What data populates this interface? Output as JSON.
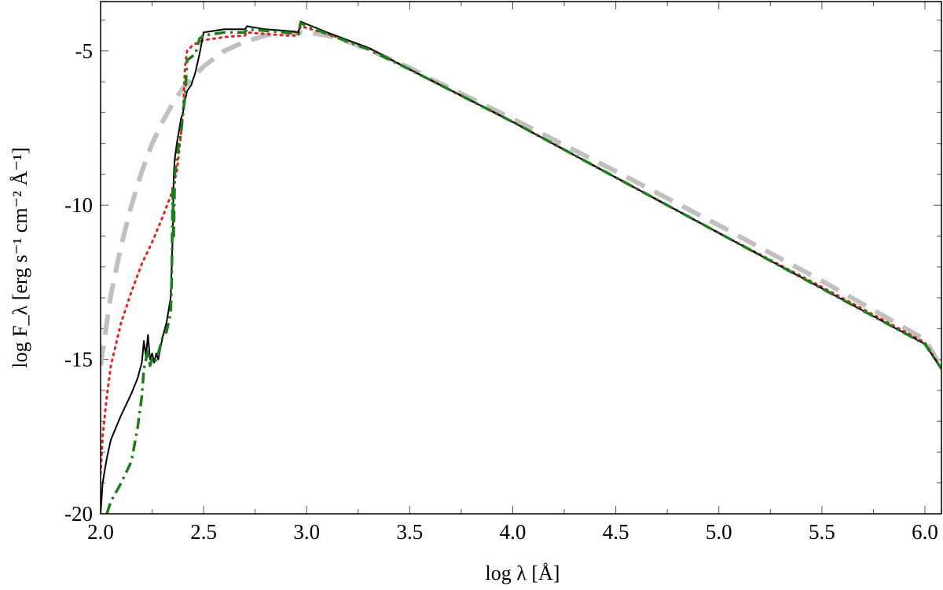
{
  "chart_data": {
    "type": "line",
    "title": "",
    "xlabel": "log λ [Å]",
    "ylabel": "log F_λ [erg s⁻¹ cm⁻² Å⁻¹]",
    "xlim": [
      2.0,
      6.08
    ],
    "ylim": [
      -20,
      -3.4
    ],
    "x_ticks": [
      2.0,
      2.5,
      3.0,
      3.5,
      4.0,
      4.5,
      5.0,
      5.5,
      6.0
    ],
    "x_tick_labels": [
      "2.0",
      "2.5",
      "3.0",
      "3.5",
      "4.0",
      "4.5",
      "5.0",
      "5.5",
      "6.0"
    ],
    "y_ticks": [
      -20,
      -15,
      -10,
      -5
    ],
    "y_tick_labels": [
      "-20",
      "-15",
      "-10",
      "-5"
    ],
    "grid": false,
    "legend": "none",
    "series": [
      {
        "style": "dashed",
        "color": "#c0c0c0",
        "x": [
          2.0,
          2.05,
          2.1,
          2.15,
          2.2,
          2.25,
          2.3,
          2.35,
          2.4,
          2.5,
          2.6,
          2.7,
          2.8,
          2.9,
          3.0,
          3.1,
          3.2,
          3.3,
          3.4,
          3.5,
          3.6,
          3.8,
          4.0,
          4.5,
          5.0,
          5.5,
          6.0,
          6.08
        ],
        "y": [
          -15.2,
          -12.9,
          -11.3,
          -10.0,
          -8.9,
          -8.0,
          -7.3,
          -6.7,
          -6.2,
          -5.5,
          -5.0,
          -4.7,
          -4.5,
          -4.4,
          -4.4,
          -4.5,
          -4.7,
          -4.95,
          -5.25,
          -5.55,
          -5.9,
          -6.55,
          -7.2,
          -8.9,
          -10.65,
          -12.45,
          -14.35,
          -15.25
        ]
      },
      {
        "style": "dotted",
        "color": "#e8201e",
        "x": [
          2.0,
          2.01,
          2.03,
          2.05,
          2.1,
          2.15,
          2.2,
          2.25,
          2.3,
          2.34,
          2.37,
          2.38,
          2.39,
          2.4,
          2.41,
          2.42,
          2.45,
          2.5,
          2.6,
          2.7,
          2.71,
          2.8,
          2.9,
          2.96,
          2.97,
          3.1,
          3.3,
          3.5,
          4.0,
          4.5,
          5.0,
          5.5,
          6.0,
          6.08
        ],
        "y": [
          -18.7,
          -17.5,
          -16.2,
          -15.2,
          -13.8,
          -12.8,
          -11.9,
          -11.2,
          -10.4,
          -9.7,
          -8.9,
          -8.3,
          -7.7,
          -7.0,
          -5.5,
          -5.0,
          -4.8,
          -4.65,
          -4.55,
          -4.5,
          -4.4,
          -4.45,
          -4.5,
          -4.5,
          -4.2,
          -4.45,
          -4.9,
          -5.6,
          -7.3,
          -9.1,
          -10.9,
          -12.65,
          -14.45,
          -15.3
        ]
      },
      {
        "style": "solid",
        "color": "#000000",
        "x": [
          2.0,
          2.01,
          2.03,
          2.05,
          2.1,
          2.15,
          2.18,
          2.2,
          2.21,
          2.22,
          2.23,
          2.24,
          2.25,
          2.26,
          2.27,
          2.28,
          2.3,
          2.32,
          2.34,
          2.35,
          2.355,
          2.36,
          2.37,
          2.38,
          2.39,
          2.4,
          2.41,
          2.42,
          2.44,
          2.46,
          2.48,
          2.5,
          2.6,
          2.7,
          2.71,
          2.8,
          2.9,
          2.96,
          2.97,
          3.1,
          3.3,
          3.5,
          4.0,
          4.5,
          5.0,
          5.5,
          6.0,
          6.08
        ],
        "y": [
          -20.0,
          -19.0,
          -18.2,
          -17.6,
          -16.8,
          -16.1,
          -15.6,
          -15.1,
          -14.4,
          -14.9,
          -14.2,
          -15.0,
          -14.8,
          -15.1,
          -14.8,
          -15.0,
          -14.3,
          -13.8,
          -13.0,
          -11.0,
          -9.0,
          -8.5,
          -8.0,
          -7.6,
          -7.2,
          -7.0,
          -6.6,
          -6.3,
          -6.1,
          -5.7,
          -5.1,
          -4.4,
          -4.3,
          -4.3,
          -4.2,
          -4.3,
          -4.35,
          -4.4,
          -4.05,
          -4.4,
          -4.9,
          -5.6,
          -7.3,
          -9.1,
          -10.9,
          -12.7,
          -14.5,
          -15.3
        ]
      },
      {
        "style": "dashdot",
        "color": "#1a7f1a",
        "x": [
          2.03,
          2.05,
          2.1,
          2.15,
          2.18,
          2.2,
          2.21,
          2.22,
          2.23,
          2.24,
          2.25,
          2.26,
          2.27,
          2.28,
          2.3,
          2.32,
          2.34,
          2.345,
          2.35,
          2.355,
          2.36,
          2.37,
          2.38,
          2.39,
          2.4,
          2.41,
          2.42,
          2.44,
          2.46,
          2.48,
          2.5,
          2.6,
          2.7,
          2.71,
          2.8,
          2.9,
          2.96,
          2.97,
          3.1,
          3.3,
          3.5,
          4.0,
          4.5,
          5.0,
          5.5,
          6.0,
          6.08
        ],
        "y": [
          -20.0,
          -19.6,
          -19.0,
          -18.3,
          -17.2,
          -16.2,
          -15.3,
          -15.0,
          -14.7,
          -15.2,
          -15.0,
          -15.1,
          -15.0,
          -14.8,
          -14.3,
          -14.1,
          -13.5,
          -12.5,
          -9.5,
          -11.0,
          -9.0,
          -8.5,
          -8.0,
          -7.7,
          -7.0,
          -6.5,
          -5.3,
          -5.2,
          -5.1,
          -4.6,
          -4.5,
          -4.4,
          -4.4,
          -4.3,
          -4.35,
          -4.4,
          -4.45,
          -4.1,
          -4.45,
          -4.95,
          -5.6,
          -7.3,
          -9.1,
          -10.9,
          -12.7,
          -14.5,
          -15.3
        ]
      }
    ]
  }
}
